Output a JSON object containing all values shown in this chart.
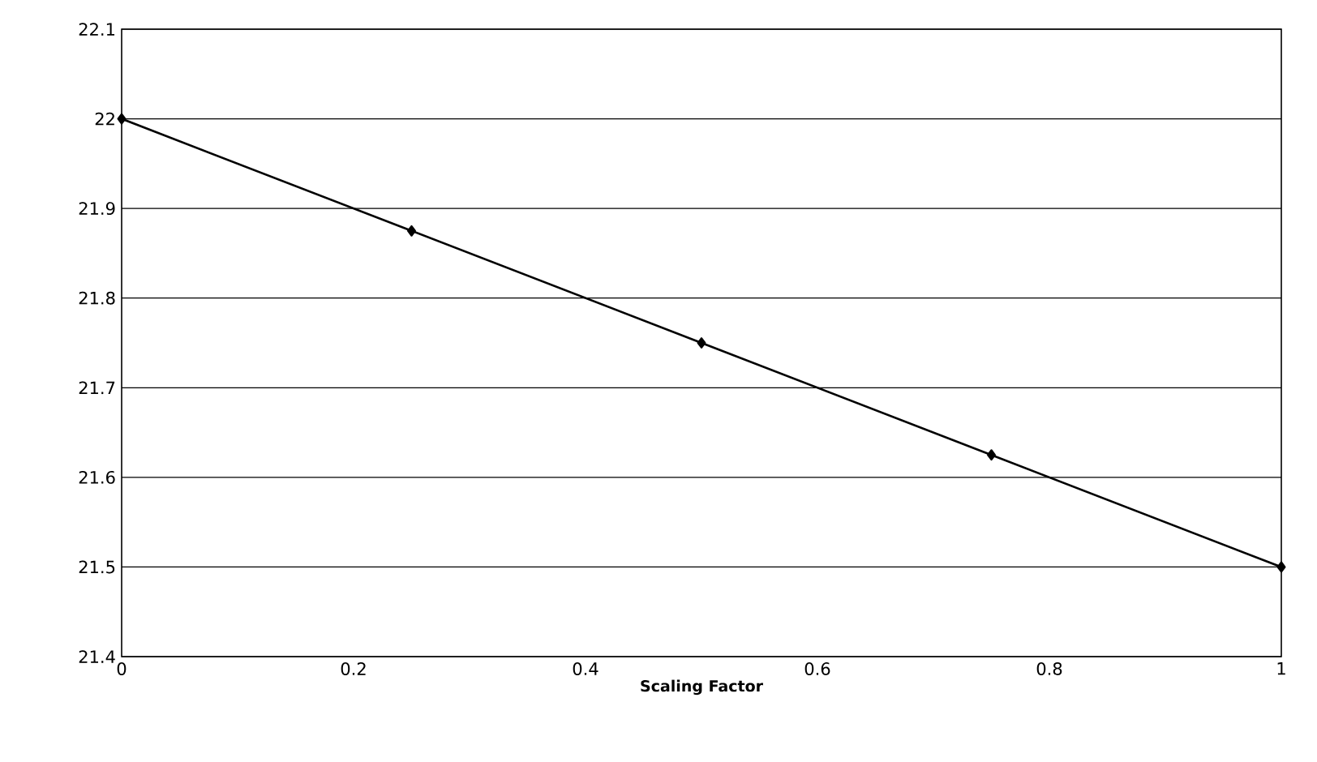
{
  "chart_data": {
    "type": "line",
    "xlabel": "Scaling Factor",
    "x": [
      0,
      0.25,
      0.5,
      0.75,
      1
    ],
    "values": [
      22.0,
      21.875,
      21.75,
      21.625,
      21.5
    ],
    "color": "#000000",
    "marker": "diamond",
    "line_style": "solid",
    "xlim": [
      0,
      1
    ],
    "xticks": [
      0,
      0.2,
      0.4,
      0.6,
      0.8,
      1
    ],
    "ylim": [
      21.4,
      22.1
    ],
    "yticks": [
      21.4,
      21.5,
      21.6,
      21.7,
      21.8,
      21.9,
      22,
      22.1
    ],
    "grid": "y"
  }
}
